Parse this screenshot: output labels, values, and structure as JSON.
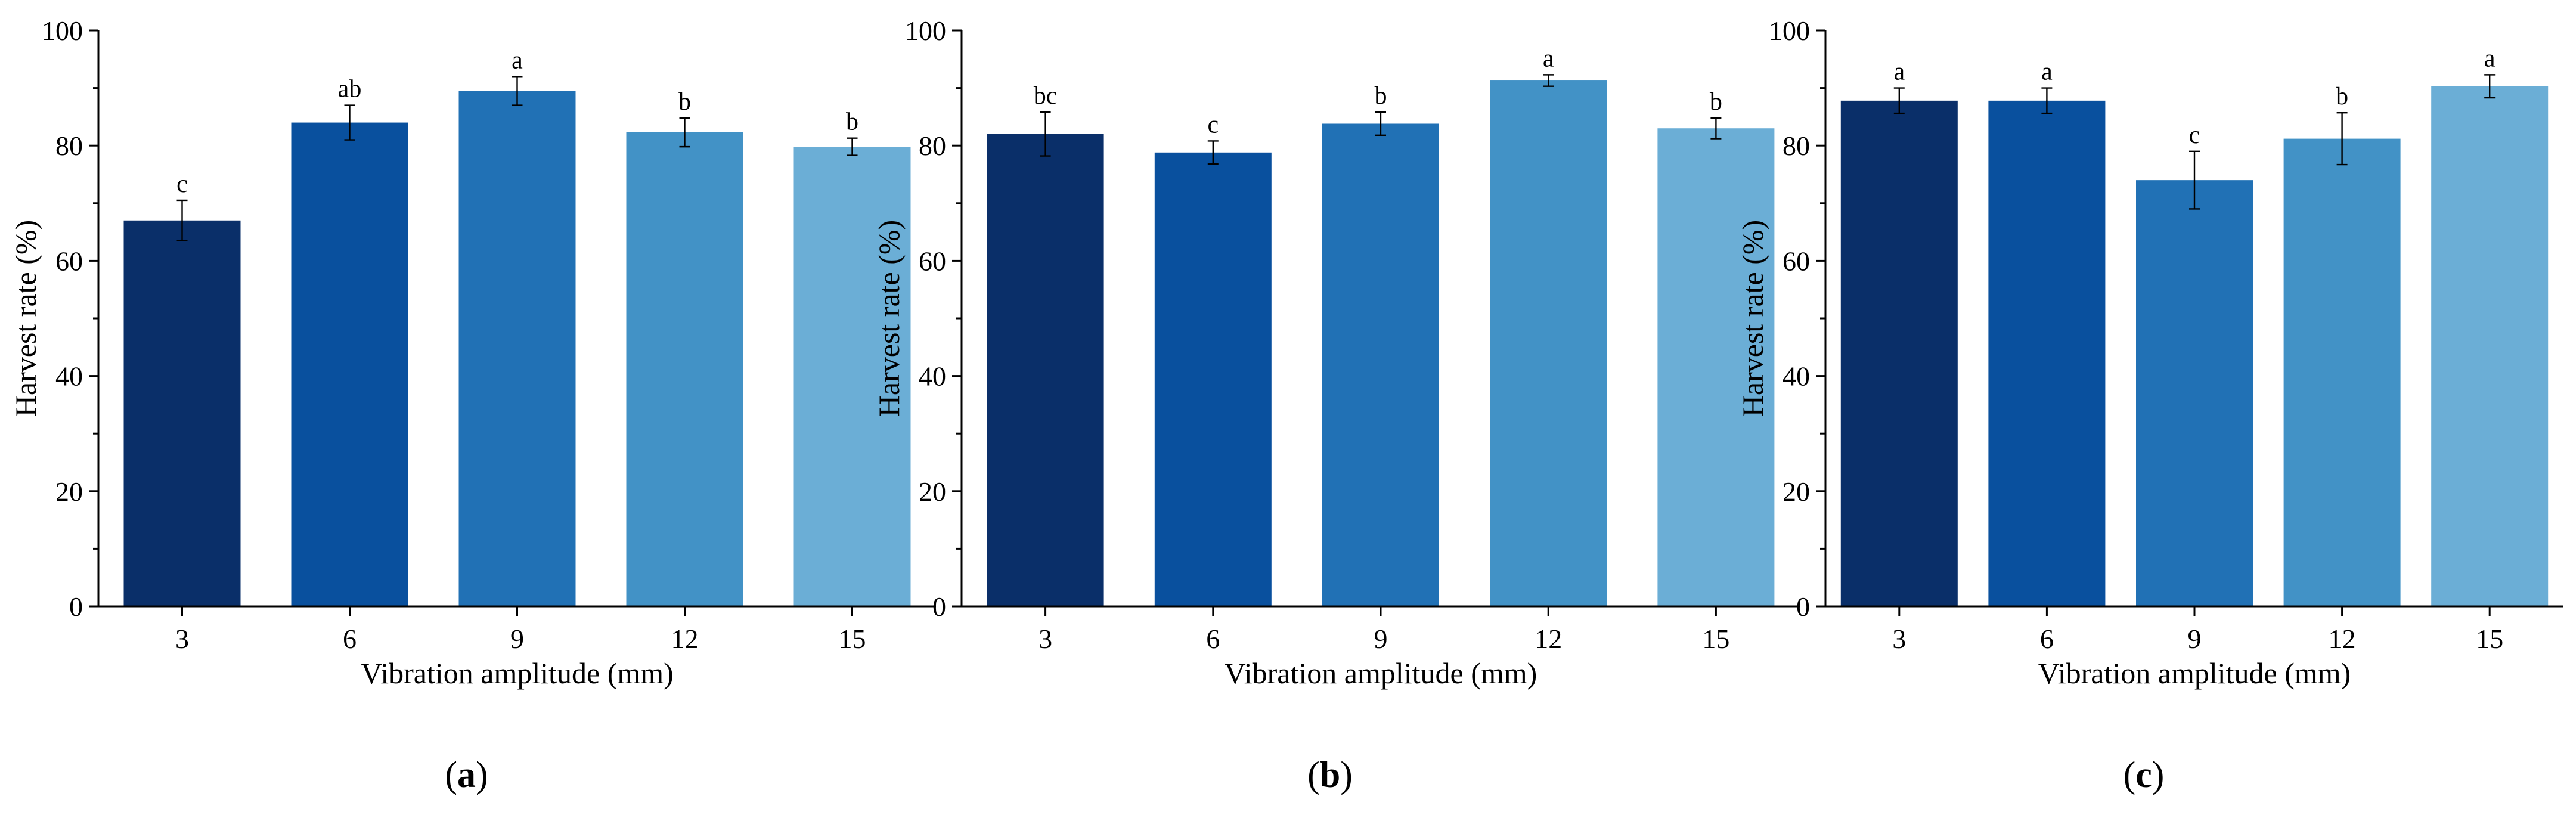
{
  "chart_data": [
    {
      "type": "bar",
      "panel_label": "a",
      "title": "",
      "xlabel": "Vibration amplitude (mm)",
      "ylabel": "Harvest rate (%)",
      "ylim": [
        0,
        100
      ],
      "yticks": [
        0,
        20,
        40,
        60,
        80,
        100
      ],
      "categories": [
        "3",
        "6",
        "9",
        "12",
        "15"
      ],
      "values": [
        67.0,
        84.0,
        89.5,
        82.3,
        79.8
      ],
      "errors": [
        3.5,
        3.0,
        2.5,
        2.5,
        1.5
      ],
      "significance": [
        "c",
        "ab",
        "a",
        "b",
        "b"
      ],
      "colors": [
        "#0a2f69",
        "#09509e",
        "#2171b5",
        "#4292c6",
        "#6baed6"
      ],
      "grid": false
    },
    {
      "type": "bar",
      "panel_label": "b",
      "title": "",
      "xlabel": "Vibration amplitude (mm)",
      "ylabel": "Harvest rate (%)",
      "ylim": [
        0,
        100
      ],
      "yticks": [
        0,
        20,
        40,
        60,
        80,
        100
      ],
      "categories": [
        "3",
        "6",
        "9",
        "12",
        "15"
      ],
      "values": [
        82.0,
        78.8,
        83.8,
        91.3,
        83.0
      ],
      "errors": [
        3.8,
        2.0,
        2.0,
        1.0,
        1.8
      ],
      "significance": [
        "bc",
        "c",
        "b",
        "a",
        "b"
      ],
      "colors": [
        "#0a2f69",
        "#09509e",
        "#2171b5",
        "#4292c6",
        "#6baed6"
      ],
      "grid": false
    },
    {
      "type": "bar",
      "panel_label": "c",
      "title": "",
      "xlabel": "Vibration amplitude (mm)",
      "ylabel": "Harvest rate (%)",
      "ylim": [
        0,
        100
      ],
      "yticks": [
        0,
        20,
        40,
        60,
        80,
        100
      ],
      "categories": [
        "3",
        "6",
        "9",
        "12",
        "15"
      ],
      "values": [
        87.8,
        87.8,
        74.0,
        81.2,
        90.3
      ],
      "errors": [
        2.2,
        2.2,
        5.0,
        4.5,
        2.0
      ],
      "significance": [
        "a",
        "a",
        "c",
        "b",
        "a"
      ],
      "colors": [
        "#0a2f69",
        "#09509e",
        "#2171b5",
        "#4292c6",
        "#6baed6"
      ],
      "grid": false
    }
  ]
}
